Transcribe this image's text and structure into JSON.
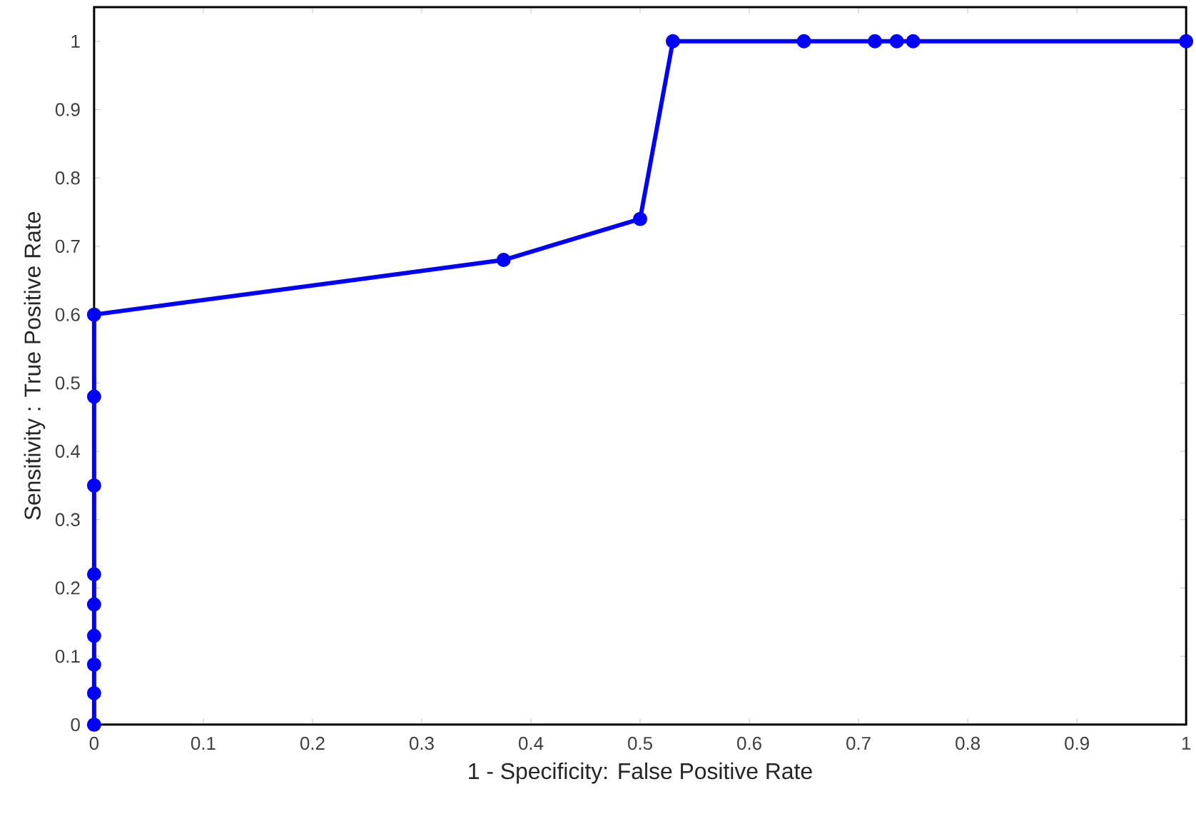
{
  "chart_data": {
    "type": "line",
    "xlabel": "1 - Specificity: False Positive Rate",
    "ylabel": "Sensitivity : True Positive Rate",
    "x": [
      0,
      0,
      0,
      0,
      0,
      0,
      0,
      0,
      0,
      0.375,
      0.5,
      0.53,
      0.65,
      0.715,
      0.735,
      0.75,
      1
    ],
    "series": [
      {
        "color": "#0000ff",
        "values": [
          0,
          0.046,
          0.088,
          0.13,
          0.176,
          0.22,
          0.35,
          0.48,
          0.6,
          0.68,
          0.74,
          1,
          1,
          1,
          1,
          1,
          1
        ]
      }
    ],
    "xlim": [
      0,
      1
    ],
    "ylim": [
      0,
      1.05
    ],
    "xticks": [
      0,
      0.1,
      0.2,
      0.3,
      0.4,
      0.5,
      0.6,
      0.7,
      0.8,
      0.9,
      1
    ],
    "yticks": [
      0,
      0.1,
      0.2,
      0.3,
      0.4,
      0.5,
      0.6,
      0.7,
      0.8,
      0.9,
      1
    ],
    "marker": "circle",
    "line_style": "solid",
    "grid": false
  }
}
